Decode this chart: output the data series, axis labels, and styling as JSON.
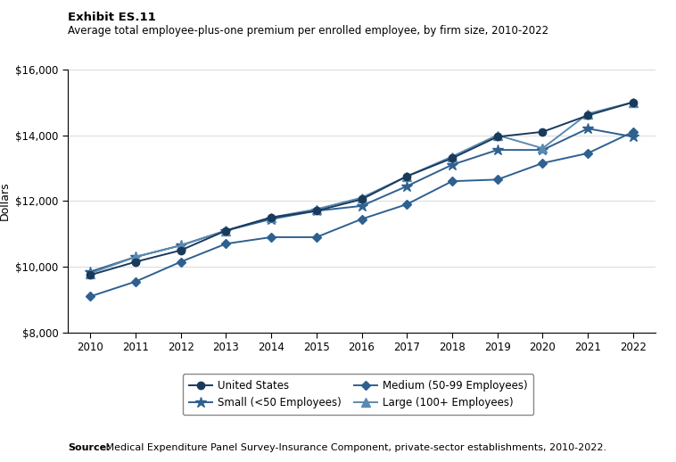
{
  "years": [
    2010,
    2011,
    2012,
    2013,
    2014,
    2015,
    2016,
    2017,
    2018,
    2019,
    2020,
    2021,
    2022
  ],
  "united_states": [
    9750,
    10150,
    10500,
    11100,
    11500,
    11700,
    12050,
    12750,
    13300,
    13950,
    14100,
    14600,
    15000
  ],
  "small": [
    9850,
    10300,
    10650,
    11100,
    11450,
    11700,
    11850,
    12450,
    13100,
    13550,
    13550,
    14200,
    13950
  ],
  "medium": [
    9100,
    9550,
    10150,
    10700,
    10900,
    10900,
    11450,
    11900,
    12600,
    12650,
    13150,
    13450,
    14100
  ],
  "large": [
    9800,
    10300,
    10650,
    11100,
    11500,
    11750,
    12100,
    12750,
    13350,
    14000,
    13600,
    14650,
    15000
  ],
  "exhibit_label": "Exhibit ES.11",
  "title": "Average total employee-plus-one premium per enrolled employee, by firm size, 2010-2022",
  "ylabel": "Dollars",
  "ylim": [
    8000,
    16000
  ],
  "yticks": [
    8000,
    10000,
    12000,
    14000,
    16000
  ],
  "source_bold": "Source:",
  "source_rest": " Medical Expenditure Panel Survey-Insurance Component, private-sector establishments, 2010-2022.",
  "line_color_us": "#1a3a5c",
  "line_color_small": "#2e6090",
  "line_color_medium": "#2e6090",
  "line_color_large": "#5a8ab0"
}
